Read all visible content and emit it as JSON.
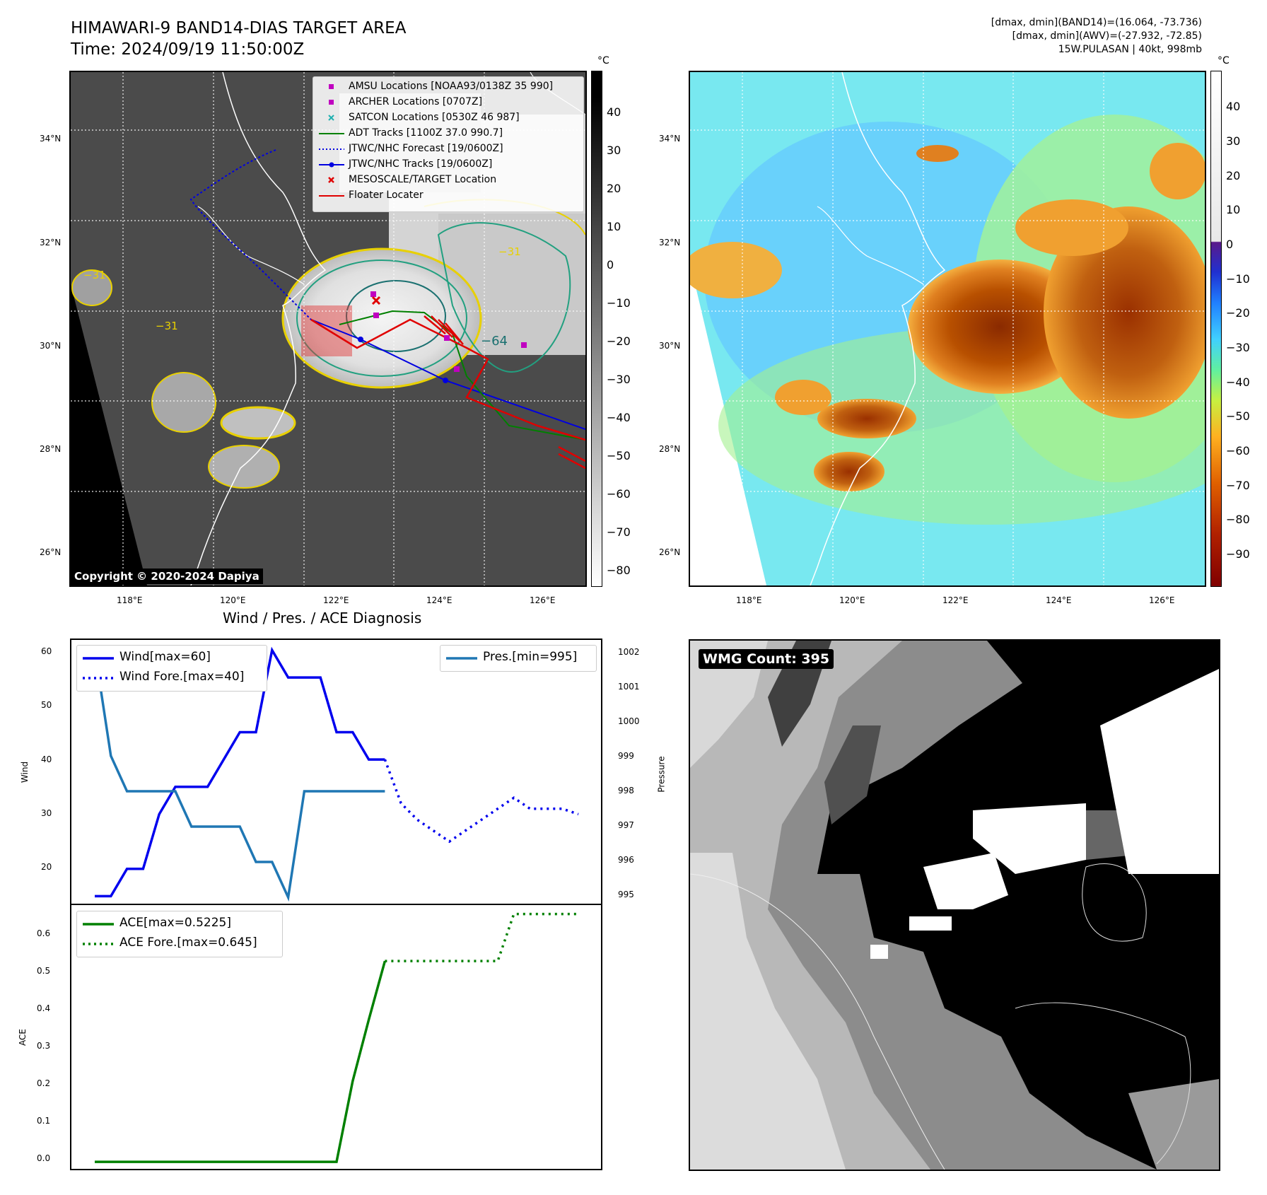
{
  "header": {
    "title_line1": "HIMAWARI-9 BAND14-DIAS TARGET AREA",
    "title_line2": "Time: 2024/09/19 11:50:00Z",
    "info_line1": "[dmax, dmin](BAND14)=(16.064, -73.736)",
    "info_line2": "[dmax, dmin](AWV)=(-27.932, -72.85)",
    "info_line3": "15W.PULASAN | 40kt, 998mb"
  },
  "map_left": {
    "lat_labels": [
      "34°N",
      "32°N",
      "30°N",
      "28°N",
      "26°N"
    ],
    "lon_labels": [
      "118°E",
      "120°E",
      "122°E",
      "124°E",
      "126°E"
    ],
    "colorbar_unit": "°C",
    "colorbar_ticks": [
      "40",
      "30",
      "20",
      "10",
      "0",
      "−10",
      "−20",
      "−30",
      "−40",
      "−50",
      "−60",
      "−70",
      "−80"
    ],
    "contour_labels": [
      "−31",
      "−31",
      "−64",
      "−31"
    ],
    "copyright": "Copyright © 2020-2024 Dapiya",
    "legend": [
      {
        "label": "AMSU Locations [NOAA93/0138Z 35 990]",
        "marker": "square",
        "color": "#c000c0"
      },
      {
        "label": "ARCHER Locations [0707Z]",
        "marker": "square",
        "color": "#c000c0"
      },
      {
        "label": "SATCON Locations [0530Z 46 987]",
        "marker": "x",
        "color": "#20b0b0"
      },
      {
        "label": "ADT Tracks [1100Z 37.0 990.7]",
        "marker": "line",
        "color": "#008000"
      },
      {
        "label": "JTWC/NHC Forecast [19/0600Z]",
        "marker": "dotted",
        "color": "#0000e0"
      },
      {
        "label": "JTWC/NHC Tracks [19/0600Z]",
        "marker": "line-dot",
        "color": "#0000e0"
      },
      {
        "label": "MESOSCALE/TARGET Location",
        "marker": "x",
        "color": "#e00000"
      },
      {
        "label": "Floater Locater",
        "marker": "line",
        "color": "#e00000"
      }
    ]
  },
  "map_right": {
    "lat_labels": [
      "34°N",
      "32°N",
      "30°N",
      "28°N",
      "26°N"
    ],
    "lon_labels": [
      "118°E",
      "120°E",
      "122°E",
      "124°E",
      "126°E"
    ],
    "colorbar_unit": "°C",
    "colorbar_ticks": [
      "40",
      "30",
      "20",
      "10",
      "0",
      "−10",
      "−20",
      "−30",
      "−40",
      "−50",
      "−60",
      "−70",
      "−80",
      "−90"
    ]
  },
  "wmg": {
    "label": "WMG Count: 395"
  },
  "colors": {
    "wind": "#0000ee",
    "pressure": "#1f77b4",
    "ace": "#008000"
  },
  "chart_data": [
    {
      "type": "line",
      "title": "Wind / Pres. / ACE Diagnosis",
      "ylabel": "Wind",
      "y2label": "Pressure",
      "ylim": [
        13.5,
        62
      ],
      "y2lim": [
        994.8,
        1002.3
      ],
      "yticks": [
        "60",
        "50",
        "40",
        "30",
        "20"
      ],
      "y2ticks": [
        "1002",
        "1001",
        "1000",
        "999",
        "998",
        "997",
        "996",
        "995"
      ],
      "legend_left": [
        "Wind[max=60]",
        "Wind Fore.[max=40]"
      ],
      "legend_right": [
        "Pres.[min=995]"
      ],
      "series": [
        {
          "name": "Wind[max=60]",
          "style": "solid",
          "axis": "left",
          "x": [
            0,
            1,
            2,
            3,
            4,
            5,
            6,
            7,
            8,
            9,
            10,
            11,
            12,
            13,
            14,
            15,
            16,
            17,
            18
          ],
          "values": [
            15,
            15,
            20,
            20,
            30,
            35,
            35,
            35,
            40,
            45,
            45,
            60,
            55,
            55,
            55,
            45,
            45,
            40,
            40
          ]
        },
        {
          "name": "Wind Fore.[max=40]",
          "style": "dotted",
          "axis": "left",
          "x": [
            18,
            19,
            20,
            21,
            22,
            23,
            24,
            25,
            26,
            27,
            28,
            29,
            30
          ],
          "values": [
            40,
            32,
            29,
            27,
            25,
            27,
            29,
            31,
            33,
            31,
            31,
            31,
            30
          ]
        },
        {
          "name": "Pres.[min=995]",
          "style": "solid",
          "axis": "right",
          "x": [
            0,
            1,
            2,
            3,
            4,
            5,
            6,
            7,
            8,
            9,
            10,
            11,
            12,
            13,
            14,
            15,
            16,
            17,
            18
          ],
          "values": [
            1002,
            999,
            998,
            998,
            998,
            998,
            997,
            997,
            997,
            997,
            996,
            996,
            995,
            998,
            998,
            998,
            998,
            998,
            998
          ]
        }
      ]
    },
    {
      "type": "line",
      "ylabel": "ACE",
      "ylim": [
        -0.02,
        0.67
      ],
      "yticks": [
        "0.6",
        "0.5",
        "0.4",
        "0.3",
        "0.2",
        "0.1",
        "0.0"
      ],
      "legend": [
        "ACE[max=0.5225]",
        "ACE Fore.[max=0.645]"
      ],
      "series": [
        {
          "name": "ACE[max=0.5225]",
          "style": "solid",
          "x": [
            0,
            15,
            16,
            17,
            18
          ],
          "values": [
            0.0,
            0.0,
            0.21,
            0.37,
            0.5225
          ]
        },
        {
          "name": "ACE Fore.[max=0.645]",
          "style": "dotted",
          "x": [
            18,
            25,
            26,
            27,
            30
          ],
          "values": [
            0.5225,
            0.5225,
            0.645,
            0.645,
            0.645
          ]
        }
      ]
    }
  ]
}
